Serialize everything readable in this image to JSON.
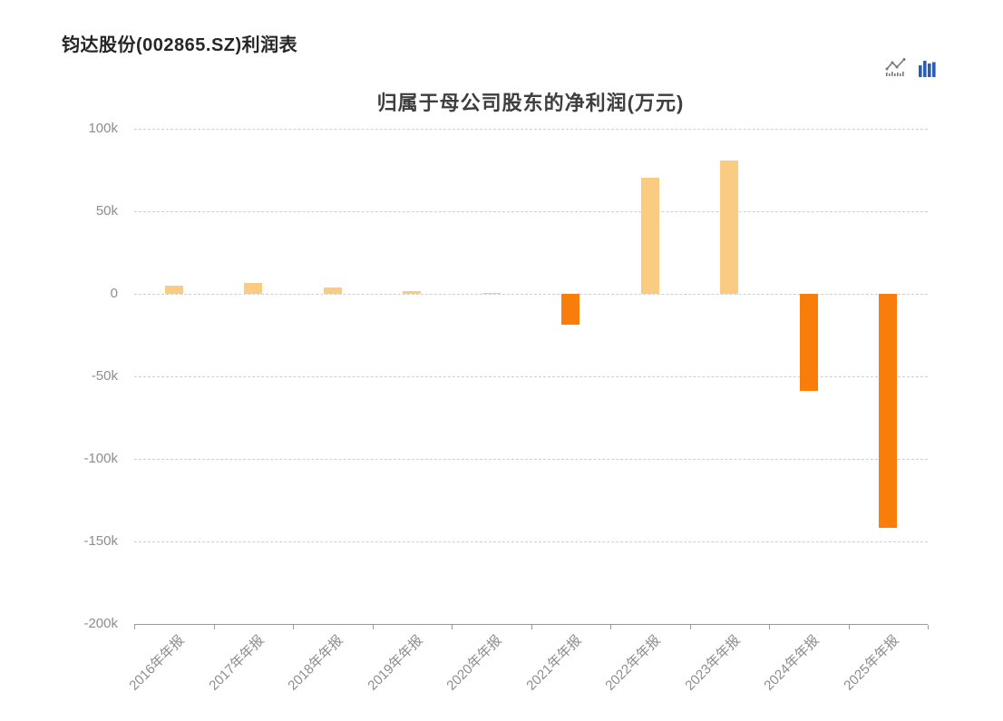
{
  "page": {
    "title": "钧达股份(002865.SZ)利润表"
  },
  "toolbox": {
    "tools": [
      {
        "label": "switch-to-line-chart",
        "icon": "line-chart-icon",
        "color": "#73787e"
      },
      {
        "label": "switch-to-bar-chart",
        "icon": "bar-chart-icon",
        "color": "#2d5cb5"
      }
    ]
  },
  "chart_data": {
    "type": "bar",
    "title": "归属于母公司股东的净利润(万元)",
    "unit": "万元",
    "categories": [
      "2016年年报",
      "2017年年报",
      "2018年年报",
      "2019年年报",
      "2020年年报",
      "2021年年报",
      "2022年年报",
      "2023年年报",
      "2024年年报",
      "2025年年报"
    ],
    "values": [
      4960,
      6450,
      3700,
      1500,
      650,
      -18500,
      70400,
      80500,
      -59000,
      -141500
    ],
    "ylim": [
      -200000,
      100000
    ],
    "ytick_step": 50000,
    "ytick_labels": [
      "100k",
      "50k",
      "0",
      "-50k",
      "-100k",
      "-150k",
      "-200k"
    ],
    "grid": {
      "horizontal_dashed": true,
      "vertical": false
    },
    "legend": null,
    "colors": {
      "positive_bar": "#FACC82",
      "negative_bar": "#F97D0B"
    },
    "bar_color_rule": "positive values light orange, negative values dark orange"
  }
}
